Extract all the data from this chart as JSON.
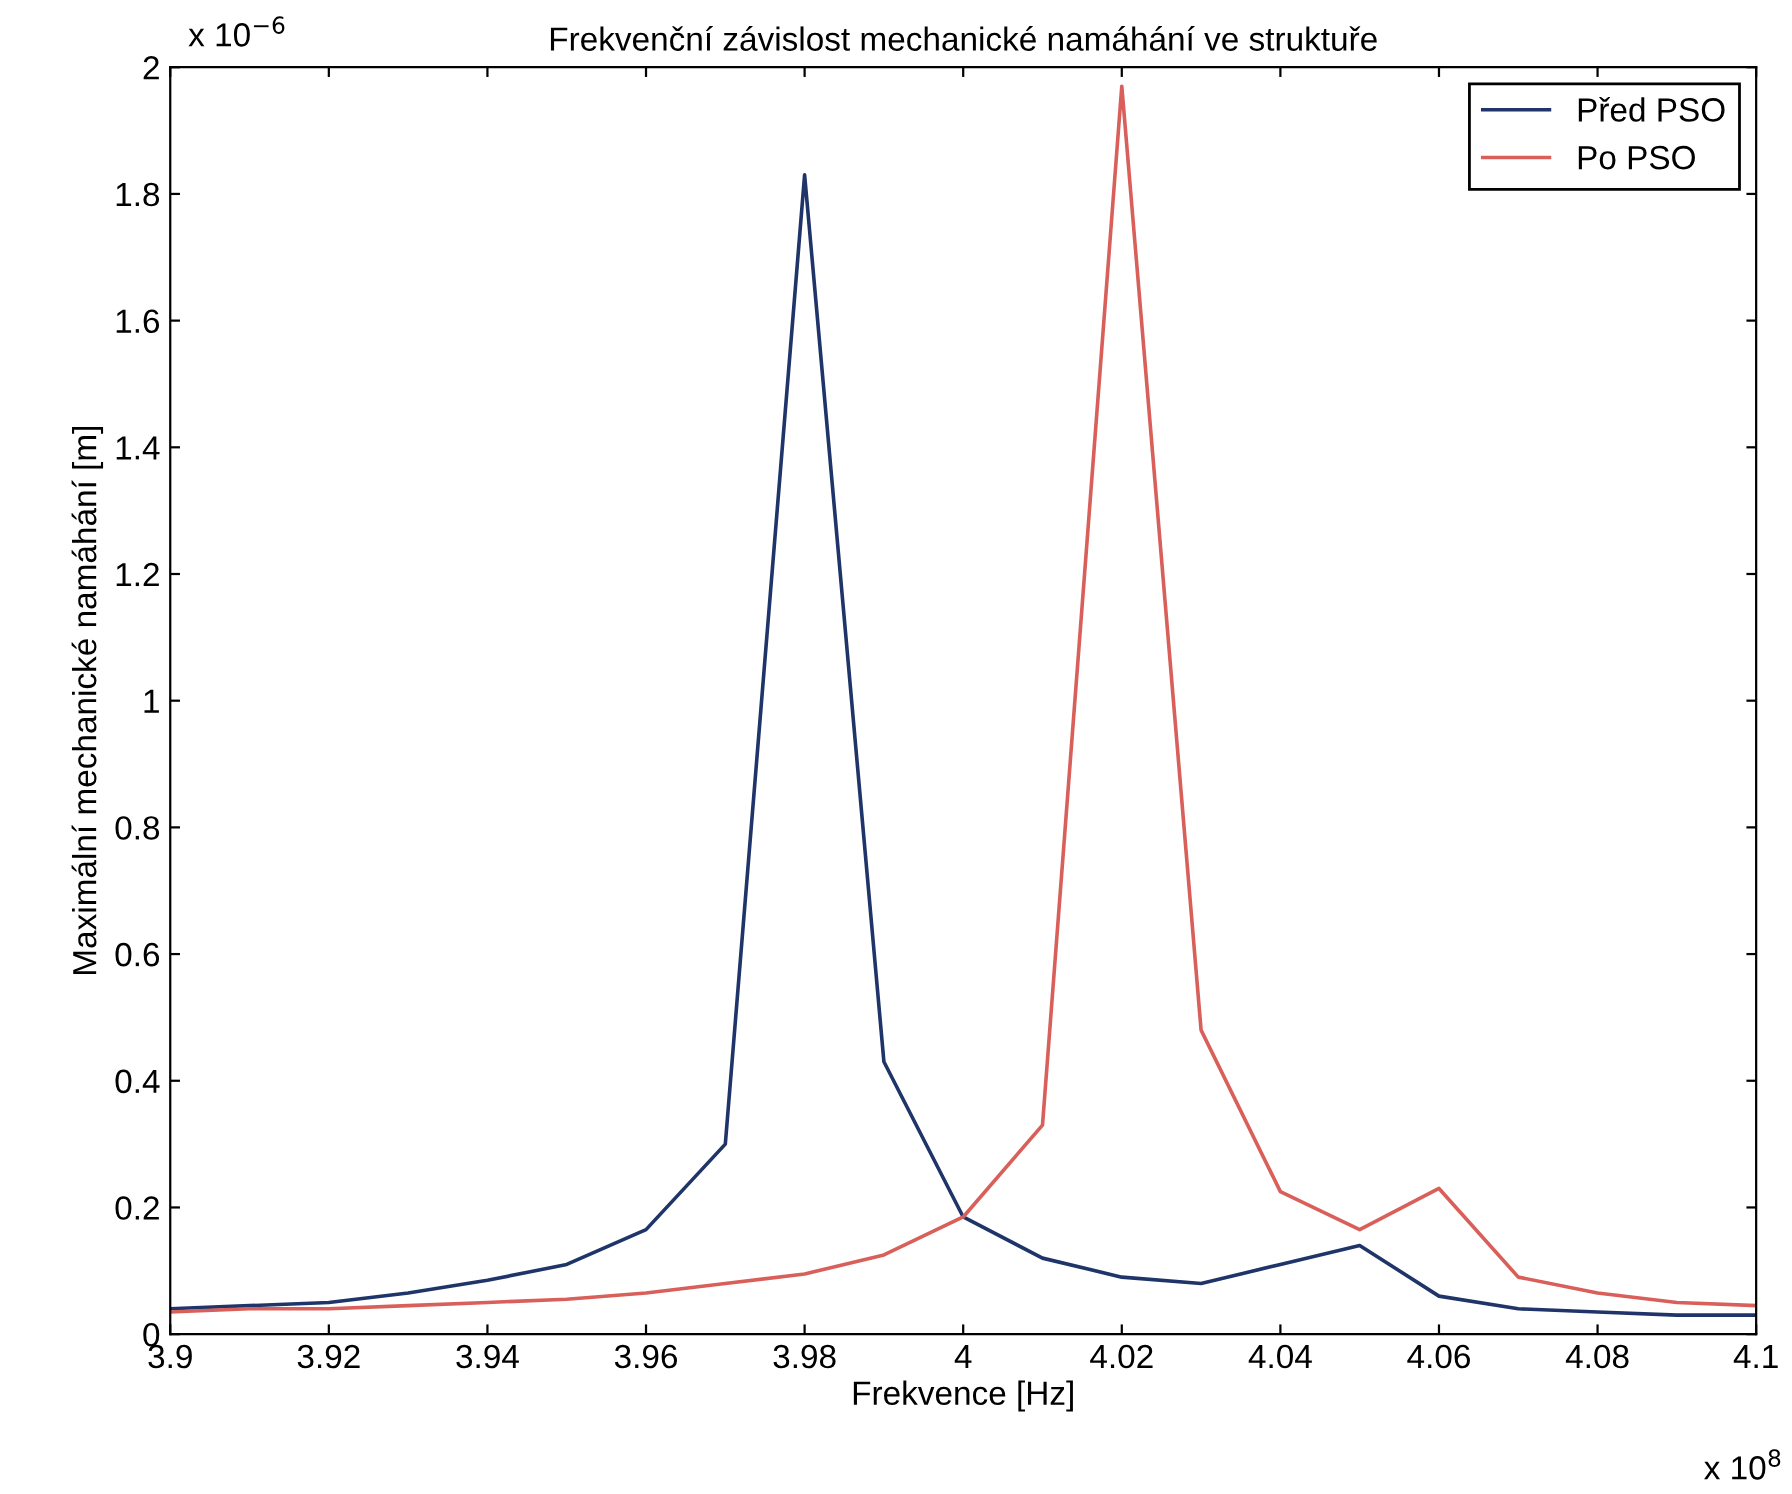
{
  "chart_data": {
    "type": "line",
    "title": "Frekvenční závislost mechanické namáhání ve struktuře",
    "xlabel": "Frekvence [Hz]",
    "ylabel": "Maximální mechanické namáhání [m]",
    "annotations": [
      "x 10$^{−6}$",
      "x 10$^{8}$"
    ],
    "x": [
      3.9,
      3.91,
      3.92,
      3.93,
      3.94,
      3.95,
      3.96,
      3.97,
      3.98,
      3.99,
      4,
      4.01,
      4.02,
      4.03,
      4.04,
      4.05,
      4.06,
      4.07,
      4.08,
      4.09,
      4.1
    ],
    "series": [
      {
        "name": "Před PSO",
        "color": "#1f3468",
        "values": [
          0.04,
          0.045,
          0.05,
          0.065,
          0.085,
          0.11,
          0.165,
          0.3,
          1.83,
          0.43,
          0.185,
          0.12,
          0.09,
          0.08,
          0.11,
          0.14,
          0.06,
          0.04,
          0.035,
          0.03,
          0.03
        ]
      },
      {
        "name": "Po PSO",
        "color": "#d9605a",
        "values": [
          0.035,
          0.04,
          0.04,
          0.045,
          0.05,
          0.055,
          0.065,
          0.08,
          0.095,
          0.125,
          0.185,
          0.33,
          1.97,
          0.48,
          0.225,
          0.165,
          0.23,
          0.09,
          0.065,
          0.05,
          0.045
        ]
      }
    ],
    "xlim": [
      3.9,
      4.1
    ],
    "xticks": [
      3.9,
      3.92,
      3.94,
      3.96,
      3.98,
      4,
      4.02,
      4.04,
      4.06,
      4.08,
      4.1
    ],
    "ylim": [
      0,
      2
    ],
    "yticks": [
      0,
      0.2,
      0.4,
      0.6,
      0.8,
      1,
      1.2,
      1.4,
      1.6,
      1.8,
      2
    ],
    "grid": false,
    "legend": "top right",
    "marker": "none",
    "line_style": "solid"
  }
}
